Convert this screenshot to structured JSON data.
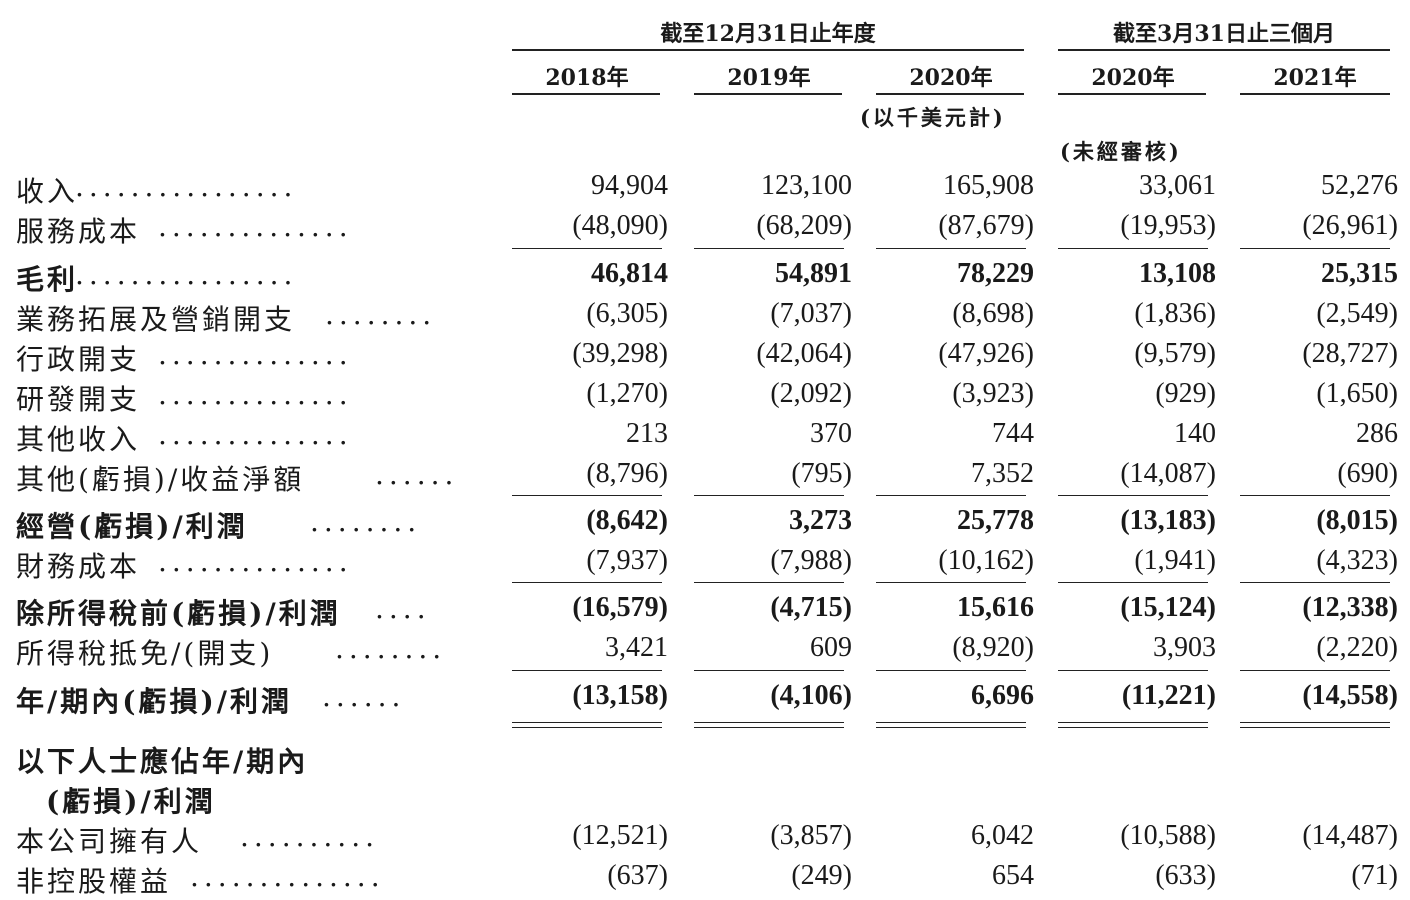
{
  "header": {
    "group1": "截至12月31日止年度",
    "group2": "截至3月31日止三個月",
    "years": [
      "2018年",
      "2019年",
      "2020年",
      "2020年",
      "2021年"
    ],
    "unit_note": "(以千美元計)",
    "unaudited_note": "(未經審核)"
  },
  "rows": [
    {
      "label": "收入",
      "dots": "................",
      "values": [
        "94,904",
        "123,100",
        "165,908",
        "33,061",
        "52,276"
      ]
    },
    {
      "label": "服務成本",
      "dots": "..............",
      "values": [
        "(48,090)",
        "(68,209)",
        "(87,679)",
        "(19,953)",
        "(26,961)"
      ]
    },
    {
      "label": "毛利",
      "dots": "................",
      "values": [
        "46,814",
        "54,891",
        "78,229",
        "13,108",
        "25,315"
      ]
    },
    {
      "label": "業務拓展及營銷開支",
      "dots": "........",
      "values": [
        "(6,305)",
        "(7,037)",
        "(8,698)",
        "(1,836)",
        "(2,549)"
      ]
    },
    {
      "label": "行政開支",
      "dots": "..............",
      "values": [
        "(39,298)",
        "(42,064)",
        "(47,926)",
        "(9,579)",
        "(28,727)"
      ]
    },
    {
      "label": "研發開支",
      "dots": "..............",
      "values": [
        "(1,270)",
        "(2,092)",
        "(3,923)",
        "(929)",
        "(1,650)"
      ]
    },
    {
      "label": "其他收入",
      "dots": "..............",
      "values": [
        "213",
        "370",
        "744",
        "140",
        "286"
      ]
    },
    {
      "label": "其他(虧損)/收益淨額",
      "dots": "......",
      "values": [
        "(8,796)",
        "(795)",
        "7,352",
        "(14,087)",
        "(690)"
      ]
    },
    {
      "label": "經營(虧損)/利潤",
      "dots": "........",
      "values": [
        "(8,642)",
        "3,273",
        "25,778",
        "(13,183)",
        "(8,015)"
      ]
    },
    {
      "label": "財務成本",
      "dots": "..............",
      "values": [
        "(7,937)",
        "(7,988)",
        "(10,162)",
        "(1,941)",
        "(4,323)"
      ]
    },
    {
      "label": "除所得稅前(虧損)/利潤",
      "dots": "....",
      "values": [
        "(16,579)",
        "(4,715)",
        "15,616",
        "(15,124)",
        "(12,338)"
      ]
    },
    {
      "label": "所得稅抵免/(開支)",
      "dots": "........",
      "values": [
        "3,421",
        "609",
        "(8,920)",
        "3,903",
        "(2,220)"
      ]
    },
    {
      "label": "年/期內(虧損)/利潤",
      "dots": "......",
      "values": [
        "(13,158)",
        "(4,106)",
        "6,696",
        "(11,221)",
        "(14,558)"
      ]
    }
  ],
  "attributable_heading": [
    "以下人士應佔年/期內",
    "(虧損)/利潤"
  ],
  "attributable_rows": [
    {
      "label": "本公司擁有人",
      "dots": "..........",
      "values": [
        "(12,521)",
        "(3,857)",
        "6,042",
        "(10,588)",
        "(14,487)"
      ]
    },
    {
      "label": "非控股權益",
      "dots": "..............",
      "values": [
        "(637)",
        "(249)",
        "654",
        "(633)",
        "(71)"
      ]
    }
  ]
}
